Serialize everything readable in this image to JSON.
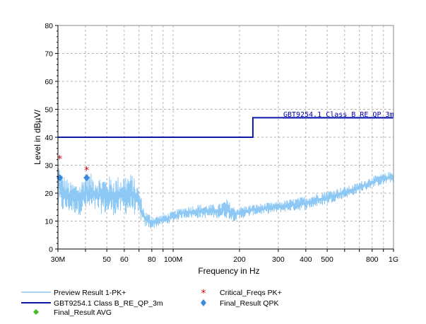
{
  "chart_data": {
    "type": "line",
    "title": "",
    "xlabel": "Frequency in Hz",
    "ylabel": "Level in dBµV/",
    "x_scale": "log",
    "xlim": [
      30000000,
      1000000000
    ],
    "ylim": [
      0,
      80
    ],
    "grid": true,
    "x_ticks": [
      {
        "value": 30000000,
        "label": "30M"
      },
      {
        "value": 50000000,
        "label": "50"
      },
      {
        "value": 60000000,
        "label": "60"
      },
      {
        "value": 80000000,
        "label": "80"
      },
      {
        "value": 100000000,
        "label": "100M"
      },
      {
        "value": 200000000,
        "label": "200"
      },
      {
        "value": 300000000,
        "label": "300"
      },
      {
        "value": 400000000,
        "label": "400"
      },
      {
        "value": 500000000,
        "label": "500"
      },
      {
        "value": 800000000,
        "label": "800"
      },
      {
        "value": 1000000000,
        "label": "1G"
      }
    ],
    "y_ticks": [
      0,
      10,
      20,
      30,
      40,
      50,
      60,
      70,
      80
    ],
    "series": [
      {
        "name": "Preview Result 1-PK+",
        "color": "#8ec8f4",
        "style": "noisy-envelope",
        "envelope": [
          {
            "x": 30000000,
            "low": 14,
            "high": 33
          },
          {
            "x": 31000000,
            "low": 13,
            "high": 28
          },
          {
            "x": 34000000,
            "low": 13,
            "high": 24
          },
          {
            "x": 38000000,
            "low": 12,
            "high": 24
          },
          {
            "x": 40000000,
            "low": 13,
            "high": 28
          },
          {
            "x": 45000000,
            "low": 13,
            "high": 26
          },
          {
            "x": 50000000,
            "low": 12,
            "high": 26
          },
          {
            "x": 55000000,
            "low": 12,
            "high": 26
          },
          {
            "x": 60000000,
            "low": 12,
            "high": 27
          },
          {
            "x": 65000000,
            "low": 13,
            "high": 27
          },
          {
            "x": 70000000,
            "low": 11,
            "high": 22
          },
          {
            "x": 74000000,
            "low": 8,
            "high": 14
          },
          {
            "x": 80000000,
            "low": 7,
            "high": 12
          },
          {
            "x": 85000000,
            "low": 8,
            "high": 12
          },
          {
            "x": 95000000,
            "low": 9,
            "high": 13
          },
          {
            "x": 110000000,
            "low": 11,
            "high": 15
          },
          {
            "x": 130000000,
            "low": 11,
            "high": 16
          },
          {
            "x": 160000000,
            "low": 11,
            "high": 16
          },
          {
            "x": 175000000,
            "low": 11,
            "high": 18
          },
          {
            "x": 190000000,
            "low": 10,
            "high": 15
          },
          {
            "x": 230000000,
            "low": 12,
            "high": 16
          },
          {
            "x": 300000000,
            "low": 13,
            "high": 17
          },
          {
            "x": 400000000,
            "low": 14,
            "high": 19
          },
          {
            "x": 500000000,
            "low": 16,
            "high": 21
          },
          {
            "x": 650000000,
            "low": 19,
            "high": 23
          },
          {
            "x": 800000000,
            "low": 22,
            "high": 26
          },
          {
            "x": 1000000000,
            "low": 24,
            "high": 28
          }
        ]
      },
      {
        "name": "GBT9254.1 Class B_RE_QP_3m",
        "color": "#0a1aa6",
        "style": "step",
        "points": [
          {
            "x": 30000000,
            "y": 40
          },
          {
            "x": 230000000,
            "y": 40
          },
          {
            "x": 230000000,
            "y": 47
          },
          {
            "x": 1000000000,
            "y": 47
          }
        ]
      },
      {
        "name": "Critical_Freqs PK+",
        "color": "#cc0000",
        "style": "star",
        "points": [
          {
            "x": 30600000,
            "y": 32.5
          },
          {
            "x": 40500000,
            "y": 28.5
          }
        ]
      },
      {
        "name": "Final_Result QPK",
        "color": "#3a8ad8",
        "style": "diamond",
        "points": [
          {
            "x": 30600000,
            "y": 25.5
          },
          {
            "x": 40500000,
            "y": 25.5
          }
        ]
      },
      {
        "name": "Final_Result AVG",
        "color": "#44bb22",
        "style": "diamond",
        "points": []
      }
    ],
    "annotations": [
      {
        "text": "GBT9254.1 Class B_RE_QP_3m",
        "x": 300000000,
        "y": 47
      }
    ]
  }
}
